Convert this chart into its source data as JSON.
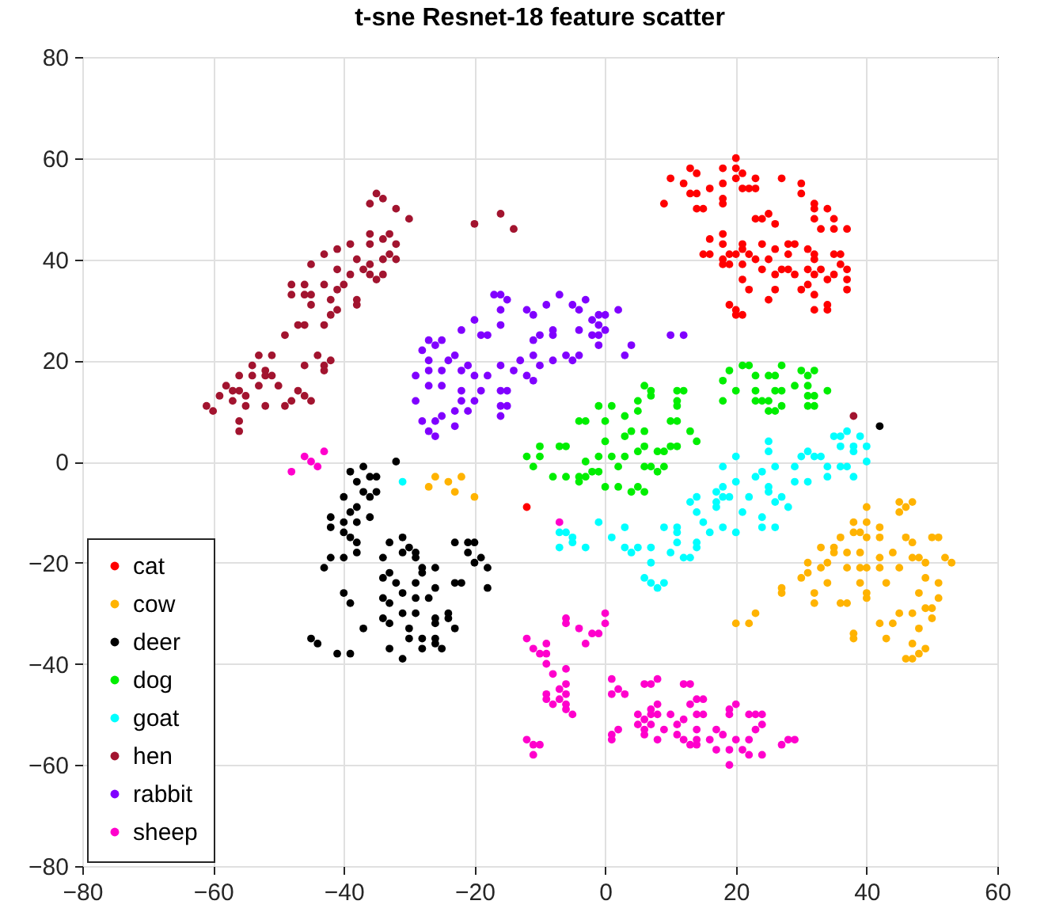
{
  "chart_data": {
    "type": "scatter",
    "title": "t-sne Resnet-18 feature scatter",
    "xlim": [
      -80,
      60
    ],
    "xticks": [
      -80,
      -60,
      -40,
      -20,
      0,
      20,
      40,
      60
    ],
    "ylim": [
      -80,
      80
    ],
    "yticks": [
      -80,
      -60,
      -40,
      -20,
      0,
      20,
      40,
      60,
      80
    ],
    "grid": true,
    "legend": "bottom left",
    "marker": "circle",
    "series": [
      {
        "name": "cat",
        "color": "#ff0000",
        "x": [
          20,
          20,
          18,
          13,
          14,
          10,
          12,
          13,
          14,
          16,
          18,
          20,
          21,
          23,
          21,
          22,
          23,
          27,
          30,
          30,
          32,
          32,
          34,
          32,
          35,
          33,
          35,
          37,
          18,
          18,
          9,
          14,
          15,
          23,
          24,
          25,
          26,
          18,
          16,
          18,
          15,
          16,
          18,
          18,
          19,
          19,
          21,
          21,
          20,
          21,
          22,
          24,
          23,
          21,
          24,
          25,
          26,
          27,
          26,
          26,
          28,
          28,
          29,
          28,
          29,
          31,
          31,
          30,
          32,
          32,
          32,
          32,
          31,
          33,
          34,
          35,
          36,
          35,
          37,
          37,
          37,
          36,
          22,
          25,
          19,
          20,
          21,
          20,
          32,
          34,
          34,
          -12
        ],
        "values": [
          60,
          58,
          58,
          58,
          57,
          56,
          55,
          53,
          53,
          54,
          55,
          56,
          57,
          56,
          54,
          54,
          54,
          56,
          55,
          53,
          51,
          50,
          50,
          48,
          48,
          46,
          46,
          46,
          52,
          51,
          51,
          50,
          50,
          48,
          48,
          49,
          47,
          45,
          44,
          43,
          41,
          41,
          40,
          39,
          41,
          39,
          43,
          42,
          41,
          39,
          41,
          43,
          40,
          36,
          38,
          40,
          37,
          38,
          34,
          42,
          41,
          43,
          43,
          38,
          37,
          42,
          38,
          34,
          40,
          37,
          41,
          33,
          35,
          38,
          36,
          41,
          41,
          37,
          38,
          36,
          34,
          39,
          34,
          32,
          31,
          30,
          29,
          29,
          30,
          30,
          31,
          -9
        ]
      },
      {
        "name": "cow",
        "color": "#ffb300",
        "x": [
          20,
          22,
          23,
          27,
          27,
          30,
          31,
          31,
          33,
          32,
          32,
          34,
          34,
          35,
          36,
          35,
          37,
          37,
          38,
          38,
          39,
          40,
          40,
          40,
          39,
          39,
          40,
          39,
          40,
          40,
          37,
          36,
          38,
          42,
          42,
          43,
          42,
          42,
          44,
          46,
          45,
          46,
          47,
          45,
          45,
          47,
          47,
          48,
          49,
          49,
          51,
          50,
          51,
          52,
          53,
          48,
          49,
          50,
          51,
          47,
          50,
          48,
          45,
          44,
          42,
          43,
          47,
          48,
          49,
          46,
          47,
          38,
          33,
          -26,
          -27,
          -24,
          -22,
          -23,
          -20
        ],
        "values": [
          -32,
          -32,
          -30,
          -26,
          -25,
          -23,
          -22,
          -20,
          -17,
          -26,
          -28,
          -24,
          -20,
          -18,
          -15,
          -17,
          -18,
          -21,
          -12,
          -14,
          -14,
          -9,
          -12,
          -15,
          -18,
          -21,
          -21,
          -24,
          -26,
          -27,
          -28,
          -28,
          -35,
          -19,
          -21,
          -24,
          -15,
          -13,
          -18,
          -15,
          -10,
          -9,
          -8,
          -8,
          -21,
          -19,
          -16,
          -19,
          -20,
          -23,
          -24,
          -15,
          -15,
          -19,
          -20,
          -26,
          -29,
          -29,
          -27,
          -30,
          -31,
          -33,
          -30,
          -32,
          -32,
          -35,
          -36,
          -38,
          -37,
          -39,
          -39,
          -34,
          -21,
          -3,
          -5,
          -4,
          -3,
          -6,
          -7
        ]
      },
      {
        "name": "deer",
        "color": "#000000",
        "x": [
          -32,
          -37,
          -39,
          -36,
          -35,
          -38,
          -35,
          -36,
          -37,
          -40,
          -38,
          -36,
          -39,
          -42,
          -38,
          -40,
          -42,
          -40,
          -39,
          -38,
          -38,
          -42,
          -43,
          -40,
          -33,
          -31,
          -30,
          -31,
          -29,
          -29,
          -34,
          -33,
          -34,
          -32,
          -28,
          -28,
          -26,
          -29,
          -31,
          -33,
          -34,
          -29,
          -27,
          -26,
          -40,
          -39,
          -31,
          -29,
          -34,
          -33,
          -37,
          -30,
          -26,
          -26,
          -24,
          -24,
          -23,
          -26,
          -26,
          -25,
          -28,
          -30,
          -33,
          -31,
          -28,
          -39,
          -41,
          -45,
          -44,
          -23,
          -21,
          -20,
          -21,
          -20,
          -19,
          -18,
          -18,
          -22,
          -23,
          42
        ],
        "values": [
          0,
          -1,
          -2,
          -3,
          -3,
          -4,
          -6,
          -7,
          -6,
          -7,
          -9,
          -11,
          -10,
          -11,
          -12,
          -12,
          -13,
          -14,
          -15,
          -16,
          -18,
          -19,
          -21,
          -19,
          -16,
          -15,
          -17,
          -18,
          -18,
          -19,
          -19,
          -22,
          -23,
          -24,
          -21,
          -22,
          -21,
          -24,
          -26,
          -28,
          -27,
          -27,
          -27,
          -25,
          -26,
          -28,
          -30,
          -30,
          -31,
          -32,
          -33,
          -33,
          -32,
          -31,
          -31,
          -30,
          -33,
          -35,
          -36,
          -37,
          -35,
          -35,
          -37,
          -39,
          -37,
          -38,
          -38,
          -35,
          -36,
          -16,
          -16,
          -16,
          -18,
          -20,
          -19,
          -21,
          -25,
          -24,
          -24,
          7
        ]
      },
      {
        "name": "dog",
        "color": "#00ee00",
        "x": [
          21,
          22,
          19,
          18,
          20,
          18,
          23,
          23,
          23,
          24,
          25,
          25,
          26,
          27,
          25,
          26,
          27,
          26,
          27,
          29,
          30,
          31,
          32,
          31,
          32,
          31,
          31,
          32,
          34,
          -12,
          -11,
          -10,
          -10,
          -8,
          -6,
          -7,
          -6,
          -4,
          -3,
          -4,
          -4,
          -3,
          -2,
          -1,
          -3,
          0,
          -1,
          1,
          0,
          -1,
          1,
          2,
          3,
          2,
          4,
          5,
          3,
          5,
          5,
          3,
          4,
          6,
          5,
          6,
          6,
          7,
          8,
          9,
          6,
          8,
          9,
          10,
          11,
          11,
          10,
          11,
          7,
          13,
          14,
          0,
          6,
          7,
          11,
          12,
          11
        ],
        "values": [
          19,
          19,
          18,
          16,
          14,
          12,
          17,
          14,
          12,
          12,
          12,
          10,
          10,
          11,
          17,
          17,
          19,
          14,
          14,
          15,
          18,
          17,
          18,
          15,
          13,
          13,
          11,
          11,
          14,
          1,
          -1,
          1,
          3,
          -3,
          -3,
          3,
          3,
          8,
          8,
          -3,
          -4,
          -3,
          -2,
          -2,
          0,
          -5,
          11,
          11,
          4,
          1,
          1,
          -1,
          1,
          -5,
          -6,
          -5,
          9,
          10,
          12,
          5,
          6,
          6,
          2,
          3,
          -1,
          -1,
          -2,
          -1,
          -6,
          2,
          2,
          3,
          3,
          8,
          8,
          11,
          13,
          6,
          4,
          8,
          15,
          14,
          14,
          14,
          12
        ]
      },
      {
        "name": "goat",
        "color": "#00ffff",
        "x": [
          -7,
          -7,
          -5,
          -3,
          -1,
          1,
          3,
          3,
          4,
          5,
          7,
          7,
          6,
          7,
          8,
          9,
          9,
          10,
          11,
          11,
          11,
          12,
          13,
          14,
          14,
          15,
          14,
          13,
          14,
          16,
          18,
          17,
          17,
          17,
          18,
          18,
          19,
          20,
          18,
          20,
          21,
          20,
          23,
          22,
          24,
          25,
          25,
          24,
          24,
          26,
          26,
          27,
          28,
          25,
          25,
          26,
          29,
          31,
          29,
          30,
          31,
          32,
          33,
          34,
          35,
          36,
          36,
          37,
          38,
          38,
          36,
          37,
          38,
          39,
          40,
          40,
          34,
          -31,
          -6,
          -5
        ],
        "values": [
          -14,
          -17,
          -16,
          -17,
          -12,
          -15,
          -13,
          -17,
          -18,
          -17,
          -17,
          -20,
          -23,
          -24,
          -25,
          -24,
          -13,
          -18,
          -16,
          -13,
          -14,
          -19,
          -19,
          -17,
          -16,
          -12,
          -10,
          -8,
          -7,
          -14,
          -13,
          -6,
          -8,
          -9,
          -7,
          -5,
          -7,
          1,
          -1,
          -4,
          -10,
          -14,
          -3,
          -7,
          -2,
          -5,
          -6,
          -11,
          -13,
          -13,
          -8,
          -7,
          -9,
          4,
          2,
          -1,
          -4,
          -4,
          -1,
          1,
          2,
          1,
          1,
          -3,
          5,
          3,
          5,
          6,
          3,
          2,
          -1,
          -1,
          -3,
          5,
          3,
          0,
          -1,
          -4,
          -14,
          -15
        ]
      },
      {
        "name": "hen",
        "color": "#a2142f",
        "x": [
          -35,
          -36,
          -34,
          -32,
          -30,
          -20,
          -16,
          -14,
          -33,
          -36,
          -34,
          -32,
          -36,
          -39,
          -41,
          -43,
          -45,
          -38,
          -34,
          -33,
          -32,
          -36,
          -37,
          -34,
          -36,
          -35,
          -41,
          -39,
          -40,
          -43,
          -46,
          -48,
          -48,
          -46,
          -45,
          -45,
          -42,
          -41,
          -38,
          -38,
          -41,
          -42,
          -43,
          -46,
          -47,
          -49,
          -51,
          -53,
          -54,
          -52,
          -56,
          -54,
          -52,
          -51,
          -58,
          -56,
          -53,
          -50,
          -59,
          -57,
          -55,
          -57,
          -55,
          -52,
          -49,
          -48,
          -47,
          -46,
          -45,
          -61,
          -60,
          -56,
          -56,
          -46,
          -44,
          -43,
          -42,
          -43,
          38
        ],
        "values": [
          53,
          51,
          52,
          50,
          48,
          47,
          49,
          46,
          45,
          45,
          44,
          43,
          43,
          43,
          42,
          41,
          39,
          40,
          40,
          41,
          40,
          39,
          38,
          37,
          37,
          36,
          38,
          37,
          35,
          35,
          35,
          35,
          33,
          33,
          33,
          31,
          32,
          34,
          32,
          31,
          30,
          29,
          27,
          27,
          27,
          25,
          21,
          21,
          19,
          18,
          17,
          17,
          17,
          17,
          15,
          14,
          15,
          15,
          13,
          14,
          13,
          12,
          11,
          11,
          11,
          12,
          14,
          13,
          12,
          11,
          10,
          8,
          6,
          19,
          21,
          19,
          20,
          18,
          9
        ]
      },
      {
        "name": "rabbit",
        "color": "#8000ff",
        "x": [
          -17,
          -16,
          -15,
          -12,
          -11,
          -9,
          -7,
          -5,
          -3,
          -4,
          -2,
          -1,
          0,
          2,
          -4,
          -1,
          -2,
          0,
          4,
          3,
          -1,
          -4,
          -5,
          -6,
          -8,
          -8,
          -10,
          -11,
          -16,
          -16,
          -18,
          -19,
          -20,
          -22,
          -25,
          -26,
          -27,
          -28,
          -27,
          -24,
          -23,
          -21,
          -22,
          -25,
          -27,
          -29,
          -27,
          -25,
          -29,
          -20,
          -18,
          -19,
          -22,
          -22,
          -23,
          -25,
          -26,
          -28,
          -27,
          -26,
          -23,
          -21,
          -20,
          -16,
          -14,
          -12,
          -11,
          -16,
          -15,
          -16,
          -15,
          -16,
          -13,
          -11,
          -10,
          -8,
          -1,
          10,
          12
        ],
        "values": [
          33,
          33,
          32,
          30,
          29,
          31,
          33,
          31,
          32,
          30,
          28,
          29,
          29,
          30,
          26,
          27,
          25,
          26,
          23,
          21,
          23,
          21,
          20,
          21,
          26,
          25,
          25,
          24,
          30,
          27,
          25,
          25,
          28,
          26,
          24,
          23,
          24,
          22,
          20,
          20,
          21,
          19,
          18,
          18,
          18,
          17,
          15,
          15,
          12,
          17,
          17,
          14,
          14,
          12,
          10,
          9,
          8,
          8,
          6,
          5,
          7,
          10,
          12,
          19,
          18,
          17,
          16,
          14,
          14,
          11,
          11,
          9,
          20,
          21,
          19,
          20,
          25,
          25,
          25
        ]
      },
      {
        "name": "sheep",
        "color": "#ff00cc",
        "x": [
          -48,
          -46,
          -45,
          -44,
          -43,
          -7,
          -6,
          -6,
          -4,
          -2,
          -1,
          0,
          0,
          -3,
          -12,
          -11,
          -10,
          -9,
          -9,
          -9,
          -6,
          -8,
          1,
          2,
          3,
          1,
          -7,
          -6,
          -6,
          -9,
          -9,
          -8,
          -7,
          -6,
          -6,
          -5,
          -12,
          -11,
          -10,
          -11,
          1,
          1,
          2,
          6,
          7,
          8,
          12,
          13,
          5,
          6,
          7,
          7,
          8,
          7,
          8,
          5,
          6,
          6,
          8,
          9,
          10,
          11,
          11,
          12,
          12,
          13,
          14,
          13,
          14,
          15,
          14,
          15,
          14,
          14,
          16,
          17,
          17,
          19,
          19,
          18,
          19,
          19,
          20,
          20,
          21,
          22,
          22,
          23,
          24,
          24,
          23,
          22,
          24,
          27,
          28,
          29
        ],
        "values": [
          -2,
          1,
          0,
          -1,
          2,
          -12,
          -31,
          -32,
          -33,
          -34,
          -34,
          -32,
          -30,
          -36,
          -35,
          -37,
          -38,
          -36,
          -38,
          -40,
          -41,
          -42,
          -43,
          -45,
          -46,
          -46,
          -45,
          -44,
          -46,
          -46,
          -47,
          -48,
          -47,
          -48,
          -49,
          -50,
          -55,
          -56,
          -56,
          -58,
          -55,
          -54,
          -53,
          -44,
          -44,
          -43,
          -44,
          -44,
          -50,
          -51,
          -49,
          -50,
          -50,
          -52,
          -48,
          -52,
          -53,
          -54,
          -55,
          -53,
          -50,
          -52,
          -54,
          -51,
          -55,
          -56,
          -55,
          -48,
          -47,
          -47,
          -50,
          -50,
          -53,
          -56,
          -55,
          -53,
          -57,
          -57,
          -60,
          -54,
          -49,
          -50,
          -48,
          -55,
          -57,
          -55,
          -50,
          -50,
          -50,
          -52,
          -53,
          -58,
          -58,
          -56,
          -55,
          -55
        ]
      }
    ]
  }
}
